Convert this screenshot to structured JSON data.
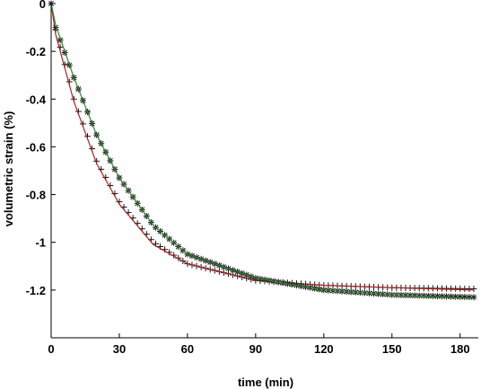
{
  "chart_data": {
    "type": "line",
    "title": "",
    "xlabel": "time (min)",
    "ylabel": "volumetric strain (%)",
    "xlim": [
      0,
      188
    ],
    "ylim": [
      -1.4,
      0
    ],
    "xticks": [
      0,
      30,
      60,
      90,
      120,
      150,
      180
    ],
    "yticks": [
      0,
      -0.2,
      -0.4,
      -0.6,
      -0.8,
      -1,
      -1.2
    ],
    "xtick_labels": [
      "0",
      "30",
      "60",
      "90",
      "120",
      "150",
      "180"
    ],
    "ytick_labels": [
      "0",
      "-0.2",
      "-0.4",
      "-0.6",
      "-0.8",
      "-1",
      "-1.2"
    ],
    "grid": false,
    "legend": "none",
    "marker_step_min": 2,
    "series": [
      {
        "marker": "plus",
        "color": "#1a1a1a",
        "x": [
          0,
          2,
          10,
          20,
          30,
          45,
          60,
          90,
          120,
          150,
          186
        ],
        "values": [
          0,
          -0.11,
          -0.4,
          -0.66,
          -0.83,
          -1.0,
          -1.09,
          -1.16,
          -1.18,
          -1.19,
          -1.195
        ]
      },
      {
        "marker": "none",
        "color": "#b22222",
        "x": [
          0,
          2,
          10,
          20,
          30,
          45,
          60,
          90,
          120,
          150,
          186
        ],
        "values": [
          0,
          -0.13,
          -0.41,
          -0.67,
          -0.84,
          -1.01,
          -1.09,
          -1.16,
          -1.18,
          -1.19,
          -1.2
        ]
      },
      {
        "marker": "star",
        "color": "#1a1a1a",
        "x": [
          0,
          2,
          10,
          20,
          30,
          45,
          60,
          90,
          120,
          150,
          186
        ],
        "values": [
          0,
          -0.1,
          -0.31,
          -0.55,
          -0.73,
          -0.93,
          -1.05,
          -1.15,
          -1.2,
          -1.22,
          -1.23
        ]
      },
      {
        "marker": "none",
        "color": "#2e8b2e",
        "x": [
          0,
          2,
          10,
          20,
          30,
          45,
          60,
          90,
          120,
          150,
          186
        ],
        "values": [
          0,
          -0.09,
          -0.31,
          -0.55,
          -0.73,
          -0.93,
          -1.05,
          -1.15,
          -1.2,
          -1.22,
          -1.235
        ]
      }
    ]
  }
}
